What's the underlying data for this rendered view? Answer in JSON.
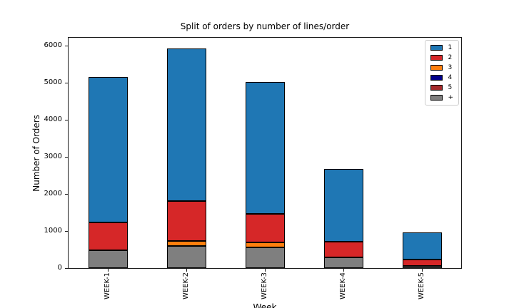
{
  "chart_data": {
    "type": "bar",
    "stacked": true,
    "title": "Split of orders by number of lines/order",
    "xlabel": "Week",
    "ylabel": "Number of Orders",
    "categories": [
      "WEEK-1",
      "WEEK-2",
      "WEEK-3",
      "WEEK-4",
      "WEEK-5"
    ],
    "series": [
      {
        "name": "1",
        "color": "#1f77b4",
        "values": [
          3920,
          4110,
          3550,
          1960,
          730
        ]
      },
      {
        "name": "2",
        "color": "#d62728",
        "values": [
          760,
          1090,
          770,
          430,
          185
        ]
      },
      {
        "name": "3",
        "color": "#ff7f0e",
        "values": [
          0,
          130,
          150,
          0,
          0
        ]
      },
      {
        "name": "4",
        "color": "#00008b",
        "values": [
          0,
          0,
          0,
          0,
          0
        ]
      },
      {
        "name": "5",
        "color": "#a52a2a",
        "values": [
          0,
          0,
          0,
          0,
          0
        ]
      },
      {
        "name": "+",
        "color": "#7f7f7f",
        "values": [
          480,
          600,
          550,
          280,
          55
        ]
      }
    ],
    "totals": [
      5160,
      5930,
      5020,
      2670,
      970
    ],
    "stack_bottom_to_top": [
      "+",
      "5",
      "4",
      "3",
      "2",
      "1"
    ],
    "bar_edge_color": "#000000",
    "ylim": [
      0,
      6220
    ],
    "yticks": [
      0,
      1000,
      2000,
      3000,
      4000,
      5000,
      6000
    ],
    "grid": false,
    "legend_location": "upper right",
    "x_tick_rotation_deg": 90
  }
}
